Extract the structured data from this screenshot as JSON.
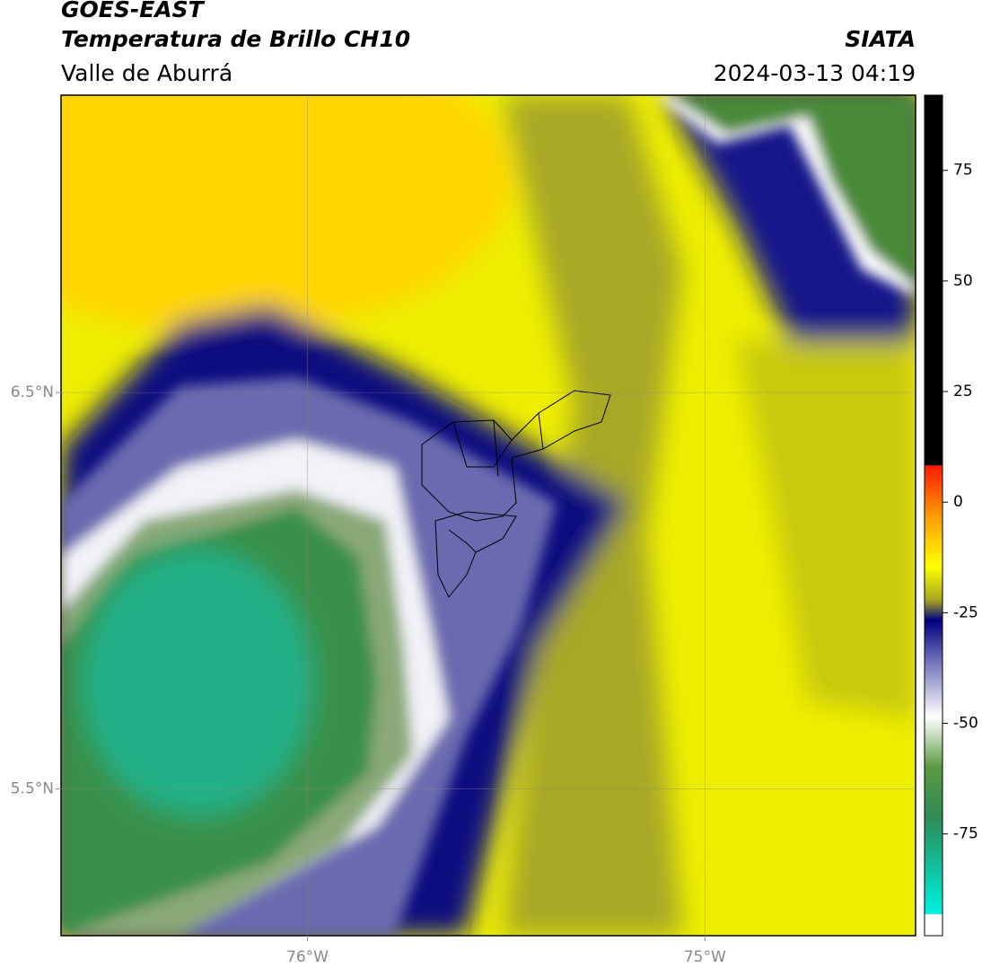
{
  "header": {
    "title": "GOES-EAST",
    "subtitle": "Temperatura de Brillo CH10",
    "region": "Valle de Aburrá",
    "source": "SIATA",
    "timestamp": "2024-03-13 04:19"
  },
  "map": {
    "latlim": [
      5.13,
      7.25
    ],
    "lonlim": [
      -76.62,
      -74.47
    ],
    "lat_ticks": [
      {
        "value": 6.5,
        "label": "6.5°N"
      },
      {
        "value": 5.5,
        "label": "5.5°N"
      }
    ],
    "lon_ticks": [
      {
        "value": -76,
        "label": "76°W"
      },
      {
        "value": -75,
        "label": "75°W"
      }
    ]
  },
  "colorbar": {
    "lim": [
      -98,
      92
    ],
    "ticks": [
      75,
      50,
      25,
      0,
      -25,
      -50,
      -75
    ]
  }
}
